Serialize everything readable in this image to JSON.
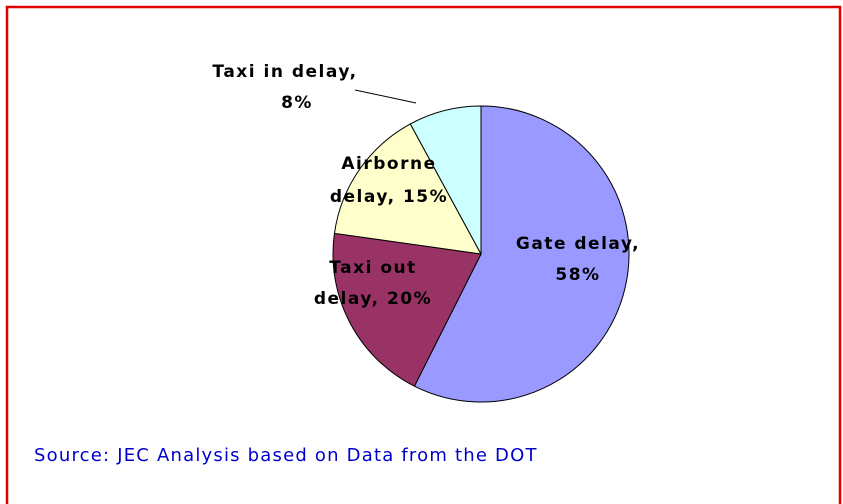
{
  "chart_data": {
    "type": "pie",
    "values": [
      58,
      20,
      15,
      8
    ],
    "value_labels": [
      [
        "Gate delay,",
        "58%"
      ],
      [
        "Taxi out",
        "delay, 20%"
      ],
      [
        "Airborne",
        "delay, 15%"
      ],
      [
        "Taxi in delay,",
        "8%"
      ]
    ],
    "colors": [
      "#9999ff",
      "#993366",
      "#ffffcc",
      "#ccffff"
    ],
    "source": "Source: JEC Analysis based on  Data from the DOT"
  }
}
